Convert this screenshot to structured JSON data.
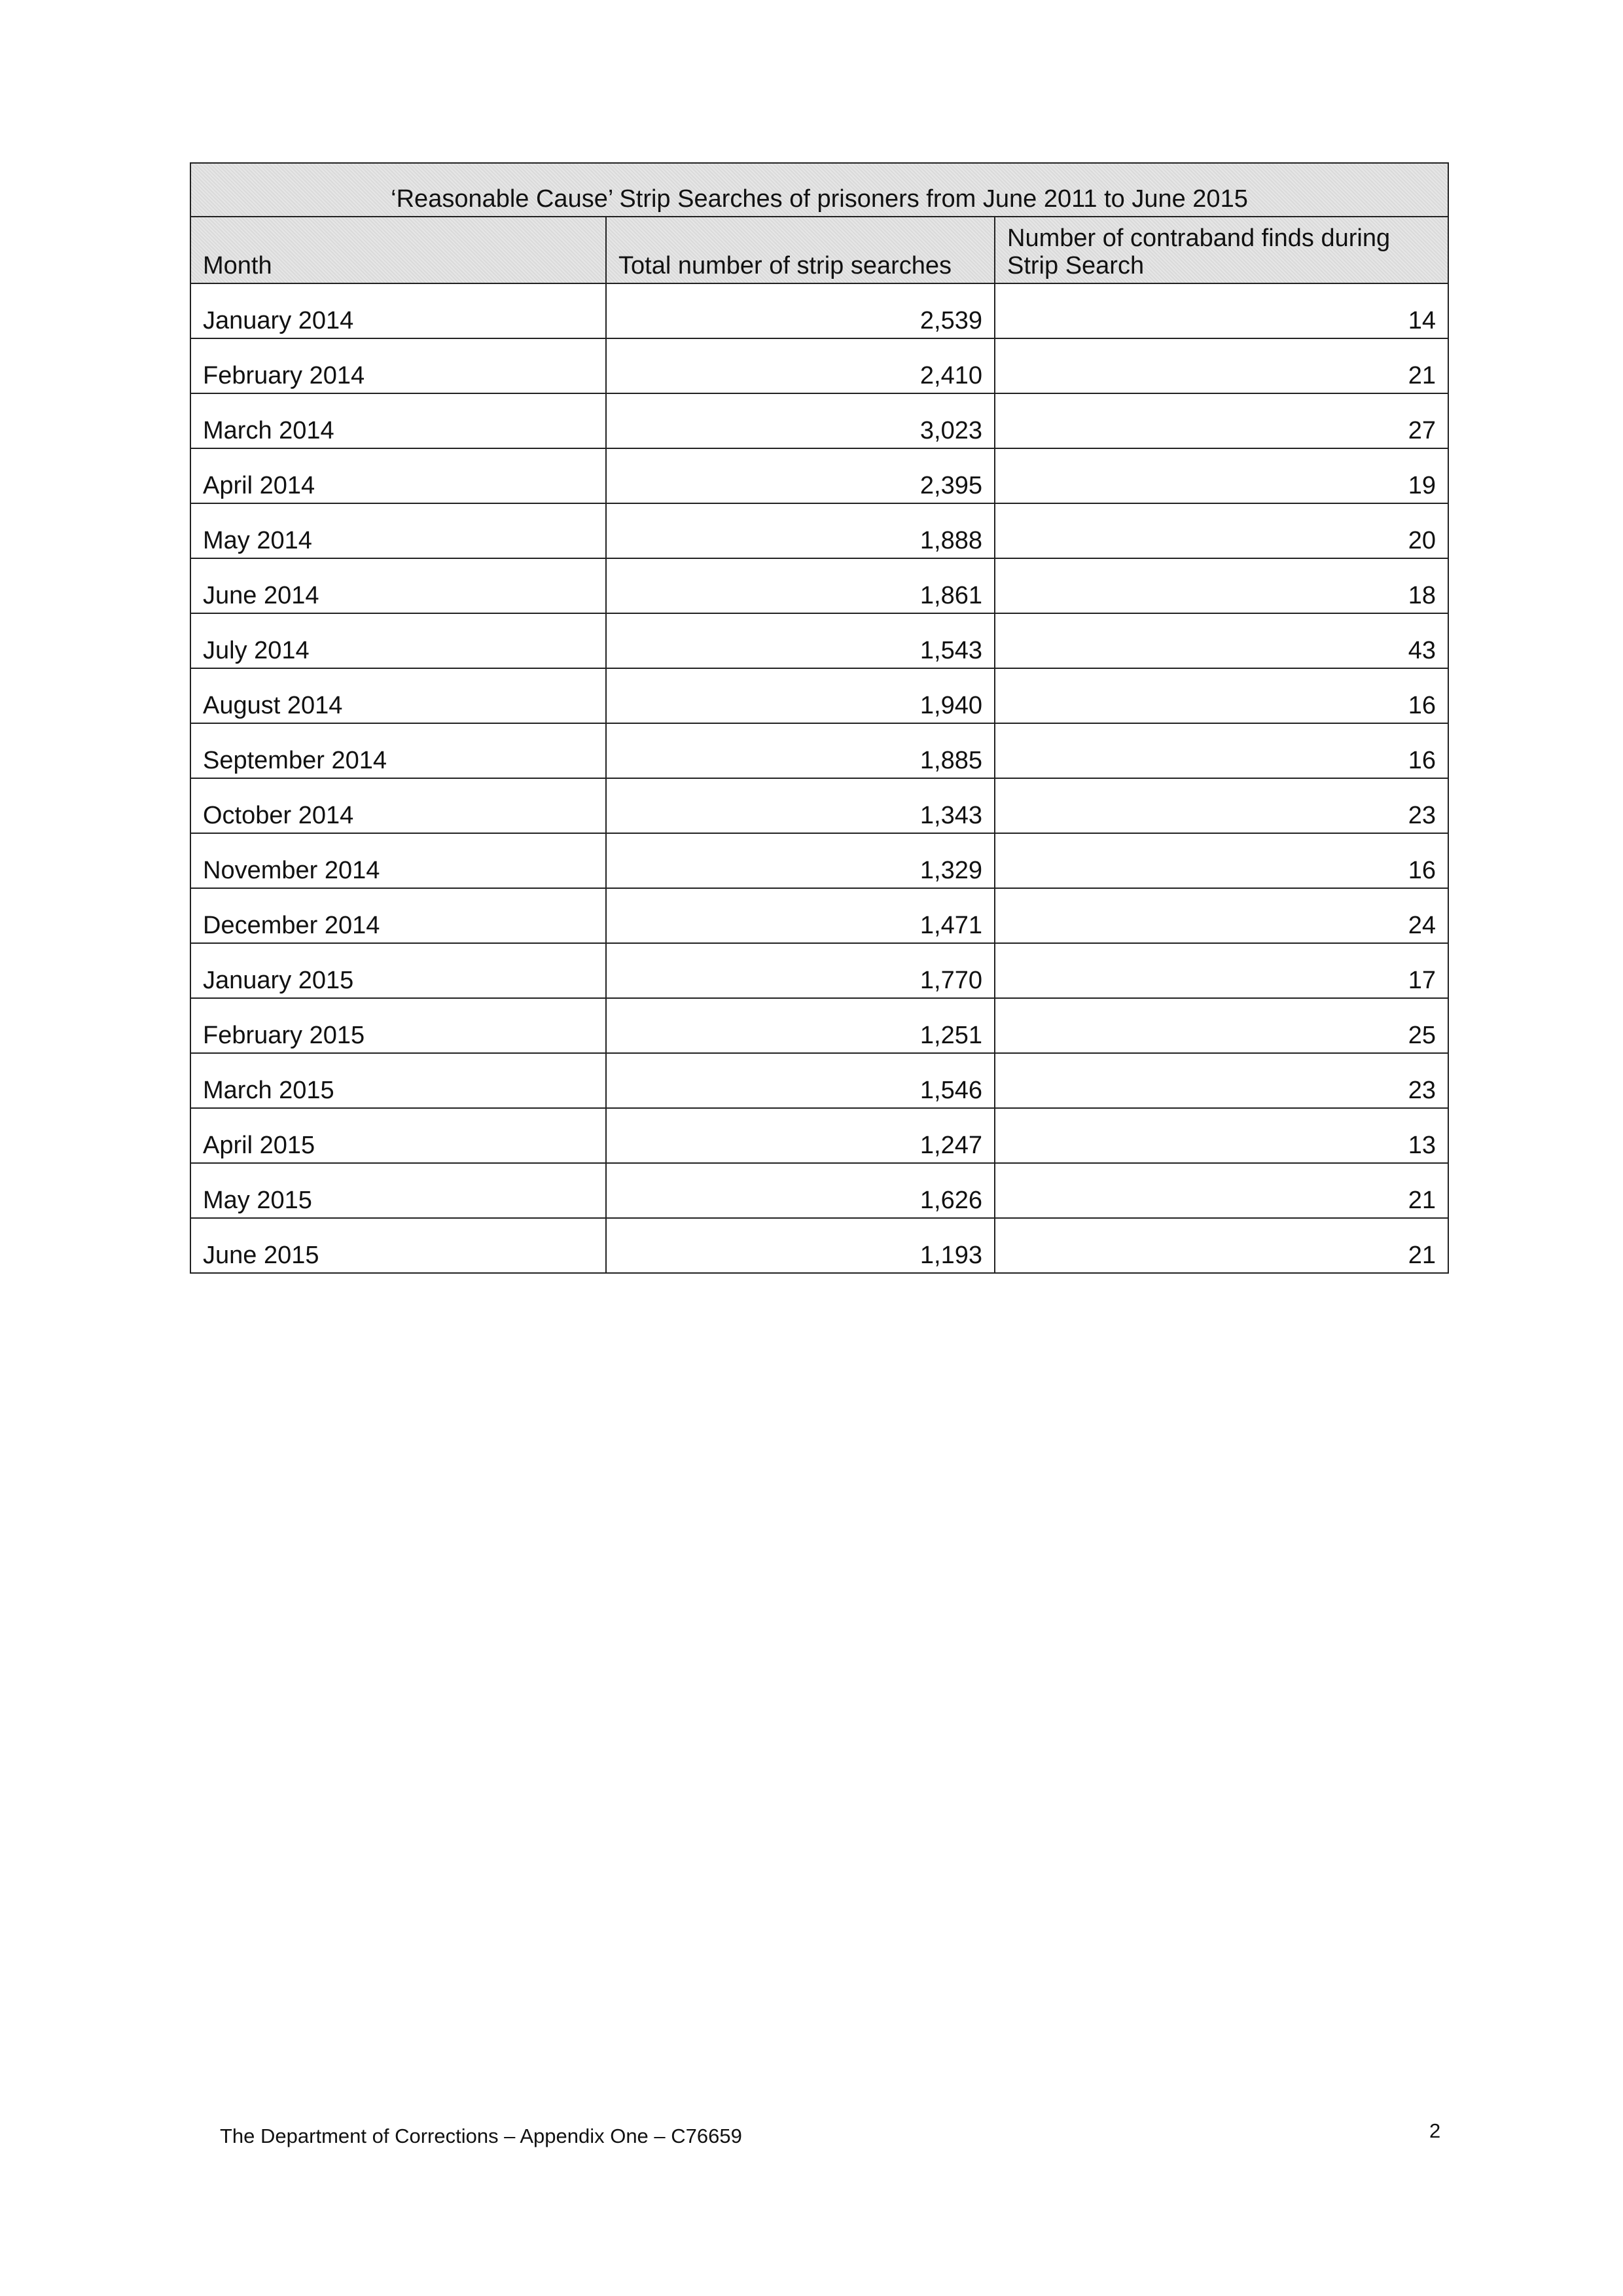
{
  "table": {
    "title": "‘Reasonable Cause’ Strip Searches of prisoners from June 2011 to June 2015",
    "headers": [
      "Month",
      "Total number of strip searches",
      "Number of contraband finds during Strip Search"
    ],
    "rows": [
      [
        "January 2014",
        "2,539",
        "14"
      ],
      [
        "February 2014",
        "2,410",
        "21"
      ],
      [
        "March 2014",
        "3,023",
        "27"
      ],
      [
        "April 2014",
        "2,395",
        "19"
      ],
      [
        "May 2014",
        "1,888",
        "20"
      ],
      [
        "June 2014",
        "1,861",
        "18"
      ],
      [
        "July 2014",
        "1,543",
        "43"
      ],
      [
        "August 2014",
        "1,940",
        "16"
      ],
      [
        "September 2014",
        "1,885",
        "16"
      ],
      [
        "October 2014",
        "1,343",
        "23"
      ],
      [
        "November 2014",
        "1,329",
        "16"
      ],
      [
        "December 2014",
        "1,471",
        "24"
      ],
      [
        "January 2015",
        "1,770",
        "17"
      ],
      [
        "February 2015",
        "1,251",
        "25"
      ],
      [
        "March 2015",
        "1,546",
        "23"
      ],
      [
        "April 2015",
        "1,247",
        "13"
      ],
      [
        "May 2015",
        "1,626",
        "21"
      ],
      [
        "June 2015",
        "1,193",
        "21"
      ]
    ]
  },
  "footer": {
    "text": "The Department of Corrections – Appendix One – C76659",
    "page_number": "2"
  }
}
